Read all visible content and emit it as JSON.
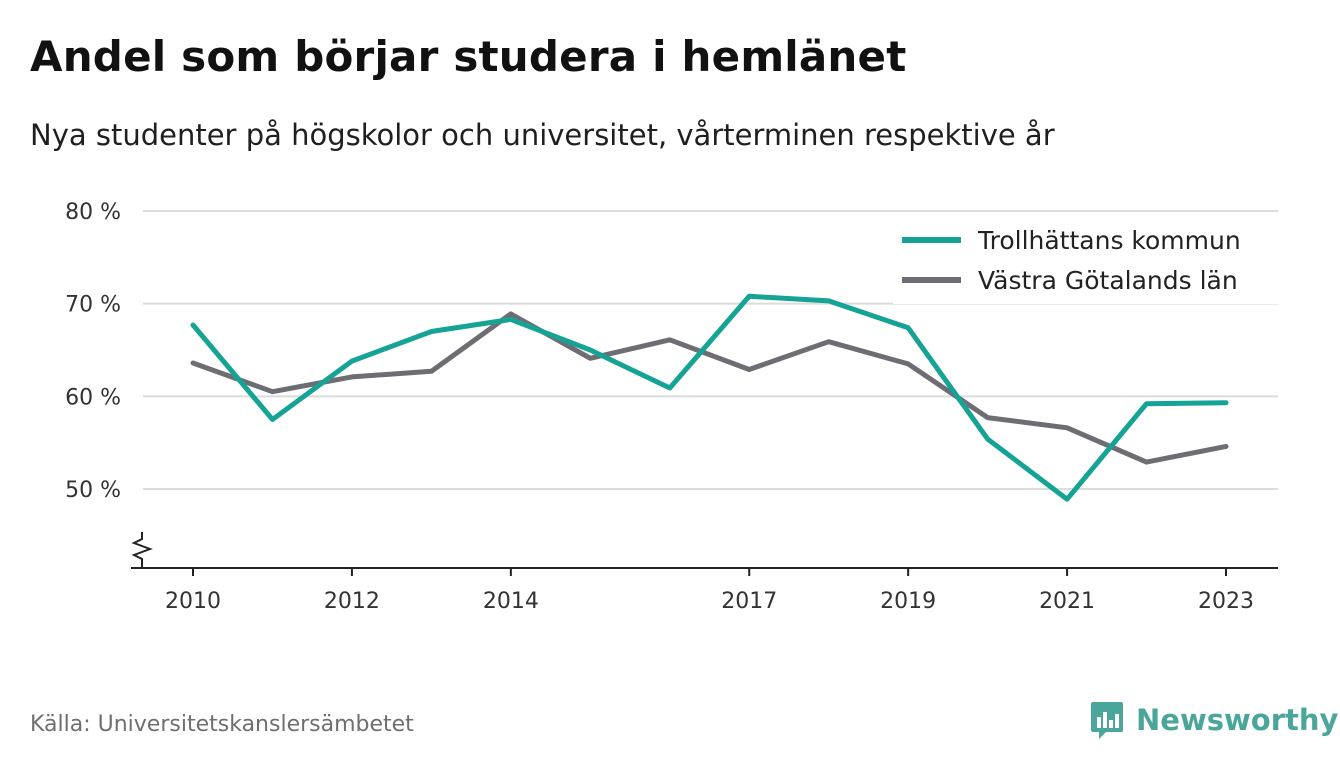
{
  "title": "Andel som börjar studera i hemlänet",
  "subtitle": "Nya studenter på högskolor och universitet, vårterminen respektive år",
  "source": "Källa: Universitetskanslersämbetet",
  "brand": {
    "name": "Newsworthy",
    "icon": "bar-chart-speech-bubble-icon",
    "color": "#4aa69a"
  },
  "chart_data": {
    "type": "line",
    "x": [
      2010,
      2011,
      2012,
      2013,
      2014,
      2015,
      2016,
      2017,
      2018,
      2019,
      2020,
      2021,
      2022,
      2023
    ],
    "x_tick_labels": [
      "2010",
      "2012",
      "2014",
      "2017",
      "2019",
      "2021",
      "2023"
    ],
    "y_tick_labels": [
      "80 %",
      "70 %",
      "60 %",
      "50 %"
    ],
    "y_ticks": [
      80,
      70,
      60,
      50
    ],
    "ylim": [
      41.5,
      80
    ],
    "y_axis_break": true,
    "grid": true,
    "legend_position": "top-right",
    "series": [
      {
        "name": "Trollhättans kommun",
        "color": "#15a396",
        "values": [
          67.7,
          57.5,
          63.8,
          67.0,
          68.3,
          65.0,
          60.9,
          70.8,
          70.3,
          67.4,
          55.4,
          48.9,
          59.2,
          59.3
        ]
      },
      {
        "name": "Västra Götalands län",
        "color": "#6f6d74",
        "values": [
          63.6,
          60.5,
          62.1,
          62.7,
          68.9,
          64.1,
          66.1,
          62.9,
          65.9,
          63.5,
          57.7,
          56.6,
          52.9,
          54.6
        ]
      }
    ]
  }
}
